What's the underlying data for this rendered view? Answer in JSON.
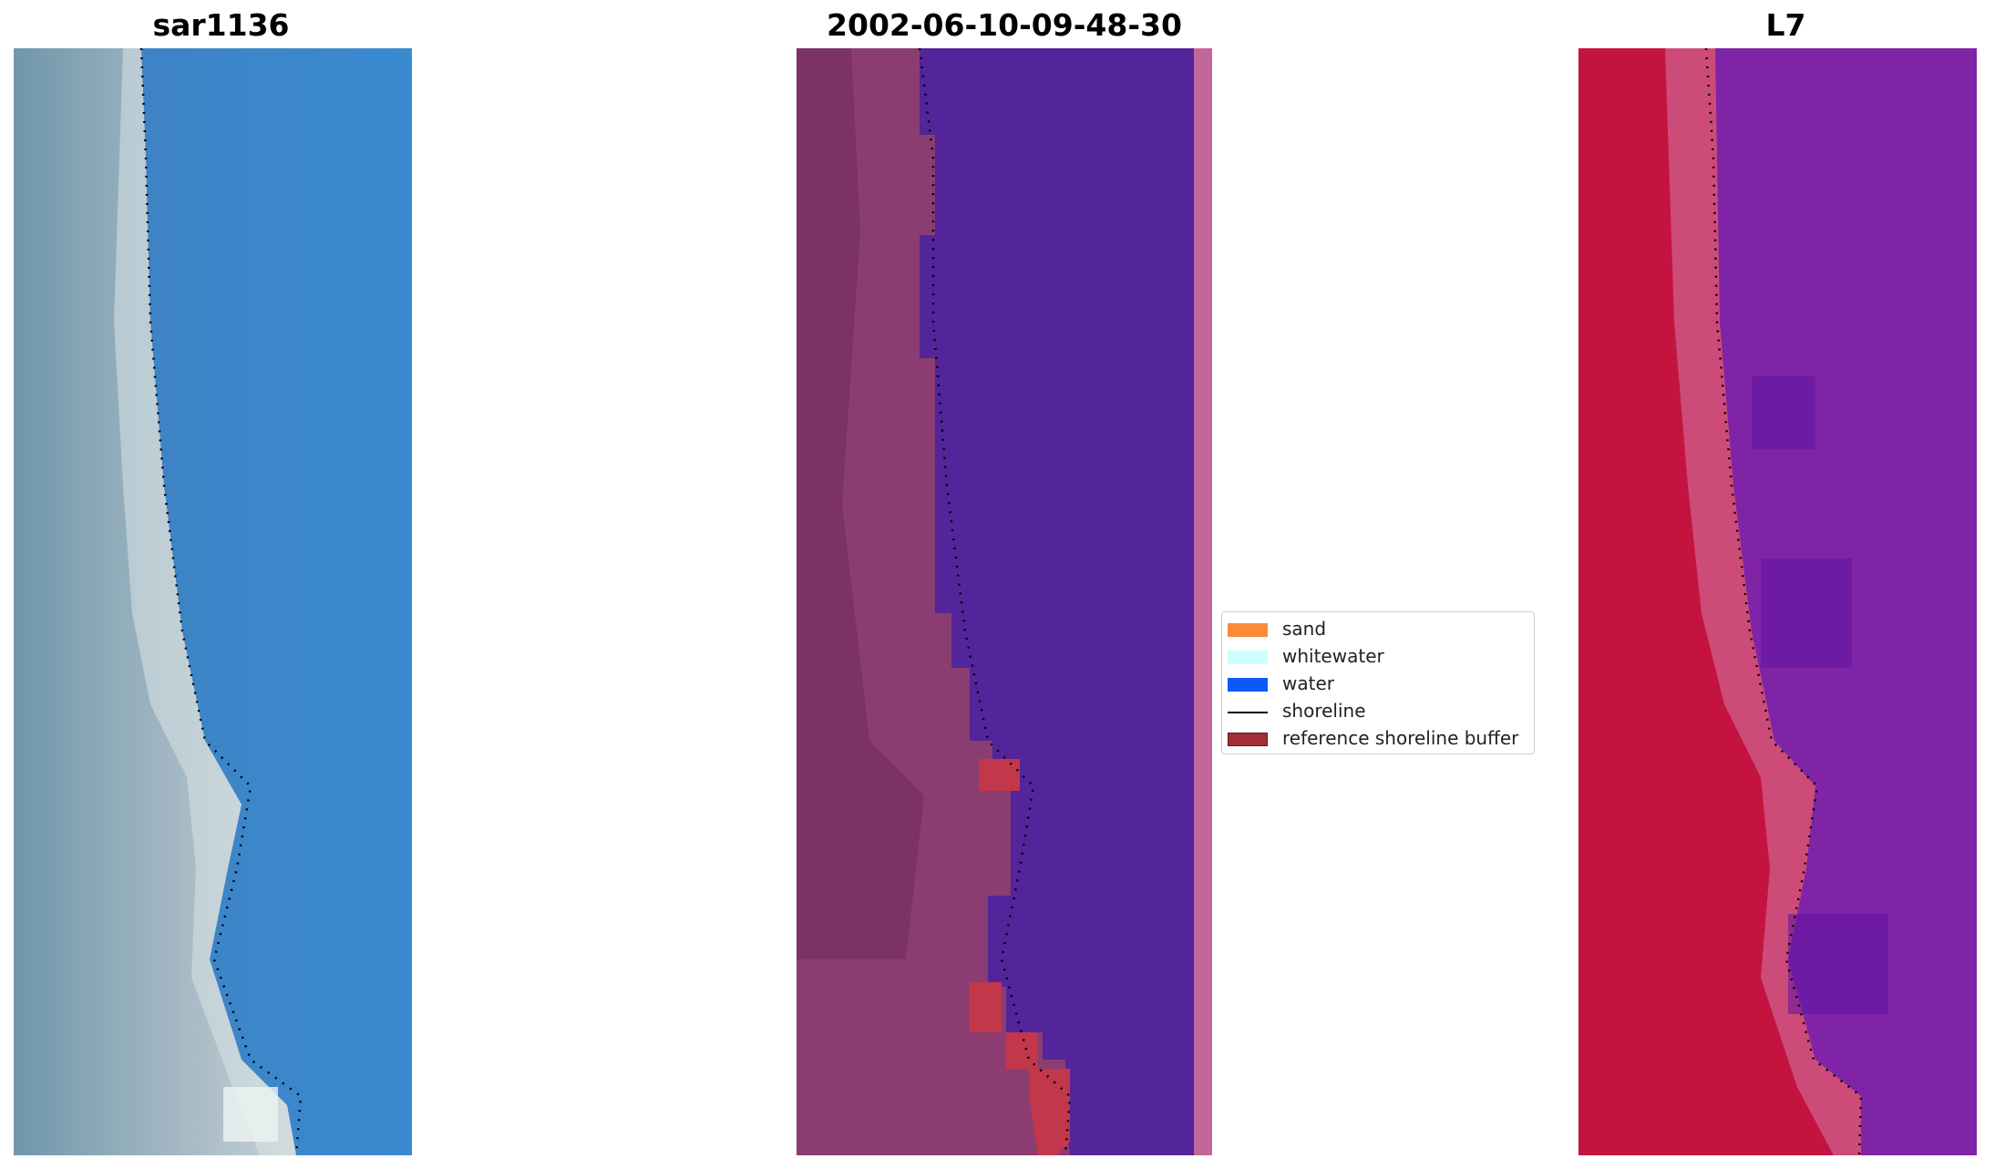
{
  "panels": [
    {
      "title": "sar1136"
    },
    {
      "title": "2002-06-10-09-48-30"
    },
    {
      "title": "L7"
    }
  ],
  "legend": {
    "items": [
      {
        "label": "sand",
        "color": "#fb8a3a",
        "type": "patch"
      },
      {
        "label": "whitewater",
        "color": "#ccffff",
        "type": "patch"
      },
      {
        "label": "water",
        "color": "#0b5af5",
        "type": "patch"
      },
      {
        "label": "shoreline",
        "color": "#000000",
        "type": "line"
      },
      {
        "label": "reference shoreline buffer",
        "color": "#a52f36",
        "type": "patch"
      }
    ]
  },
  "colors": {
    "rgb_land": "#9fb3bf",
    "rgb_water": "#3c86c8",
    "class_land": "#8b3d72",
    "class_water": "#53249a",
    "class_buffer": "#c3374a",
    "class_edge": "#c26799",
    "swir_land": "#c4133f",
    "swir_water": "#7f24a6",
    "swir_edge": "#d57aa8"
  }
}
